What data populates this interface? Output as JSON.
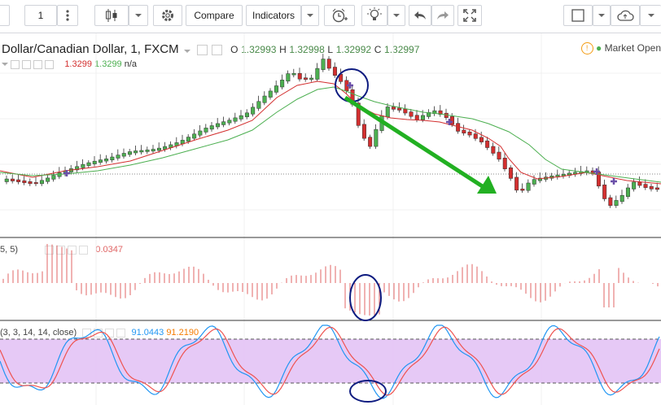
{
  "toolbar": {
    "interval_value": "1",
    "compare_label": "Compare",
    "indicators_label": "Indicators"
  },
  "symbol": {
    "title": "Dollar/Canadian Dollar, 1, FXCM",
    "open_label": "O",
    "open": "1.32993",
    "high_label": "H",
    "high": "1.32998",
    "low_label": "L",
    "low": "1.32992",
    "close_label": "C",
    "close": "1.32997",
    "ma_value_1": "1.3299",
    "ma_value_2": "1.3299",
    "ma_value_3": "n/a"
  },
  "market_status": "Market Open",
  "macd_pane": {
    "label": "5, 5)",
    "value": "0.0347"
  },
  "stoch_pane": {
    "label": "(3, 3, 14, 14, close)",
    "k_value": "91.0443",
    "d_value": "91.2190"
  },
  "colors": {
    "up_candle": "#4caf50",
    "down_candle": "#d32f2f",
    "ma_red": "#d32f2f",
    "ma_green": "#4caf50",
    "stoch_band": "#e3c3f5",
    "stoch_k": "#2196f3",
    "stoch_d": "#ef5350",
    "arrow": "#22b022",
    "circle": "#0d1b80",
    "macd_hist": "#e06666"
  },
  "icons": [
    "more-vert-icon",
    "candles-icon",
    "chevron-down-icon",
    "gear-icon",
    "alarm-add-icon",
    "bulb-icon",
    "undo-icon",
    "redo-icon",
    "fullscreen-icon",
    "square-icon",
    "cloud-icon"
  ]
}
